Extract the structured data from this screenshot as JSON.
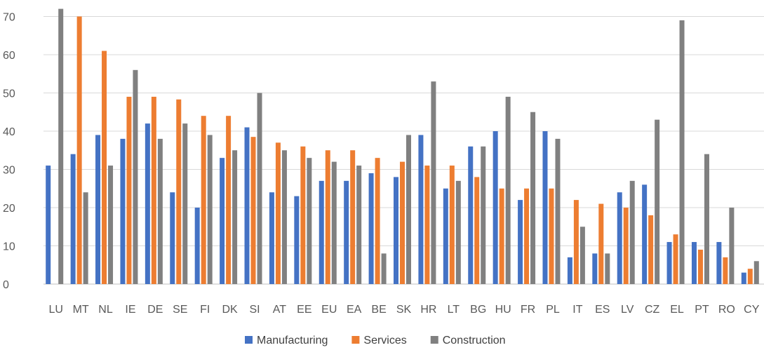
{
  "chart_data": {
    "type": "bar",
    "categories": [
      "LU",
      "MT",
      "NL",
      "IE",
      "DE",
      "SE",
      "FI",
      "DK",
      "SI",
      "AT",
      "EE",
      "EU",
      "EA",
      "BE",
      "SK",
      "HR",
      "LT",
      "BG",
      "HU",
      "FR",
      "PL",
      "IT",
      "ES",
      "LV",
      "CZ",
      "EL",
      "PT",
      "RO",
      "CY"
    ],
    "series": [
      {
        "name": "Manufacturing",
        "color": "#4472c4",
        "values": [
          31,
          34,
          39,
          38,
          42,
          24,
          20,
          33,
          41,
          24,
          23,
          27,
          27,
          29,
          28,
          39,
          25,
          36,
          40,
          22,
          40,
          7,
          8,
          24,
          26,
          11,
          11,
          11,
          3
        ]
      },
      {
        "name": "Services",
        "color": "#ed7d31",
        "values": [
          null,
          70,
          61,
          49,
          49,
          48.3,
          44,
          44,
          38.5,
          37,
          36,
          35,
          35,
          33,
          32,
          31,
          31,
          28,
          25,
          25,
          25,
          22,
          21,
          20,
          18,
          13,
          9,
          7,
          4
        ]
      },
      {
        "name": "Construction",
        "color": "#808080",
        "values": [
          72,
          24,
          31,
          56,
          38,
          42,
          39,
          35,
          50,
          35,
          33,
          32,
          31,
          8,
          39,
          53,
          27,
          36,
          49,
          45,
          38,
          15,
          8,
          27,
          43,
          69,
          34,
          20,
          6
        ]
      }
    ],
    "yticks": [
      0,
      10,
      20,
      30,
      40,
      50,
      60,
      70
    ],
    "ylim": [
      0,
      72
    ],
    "grid": true,
    "legend_position": "bottom"
  }
}
